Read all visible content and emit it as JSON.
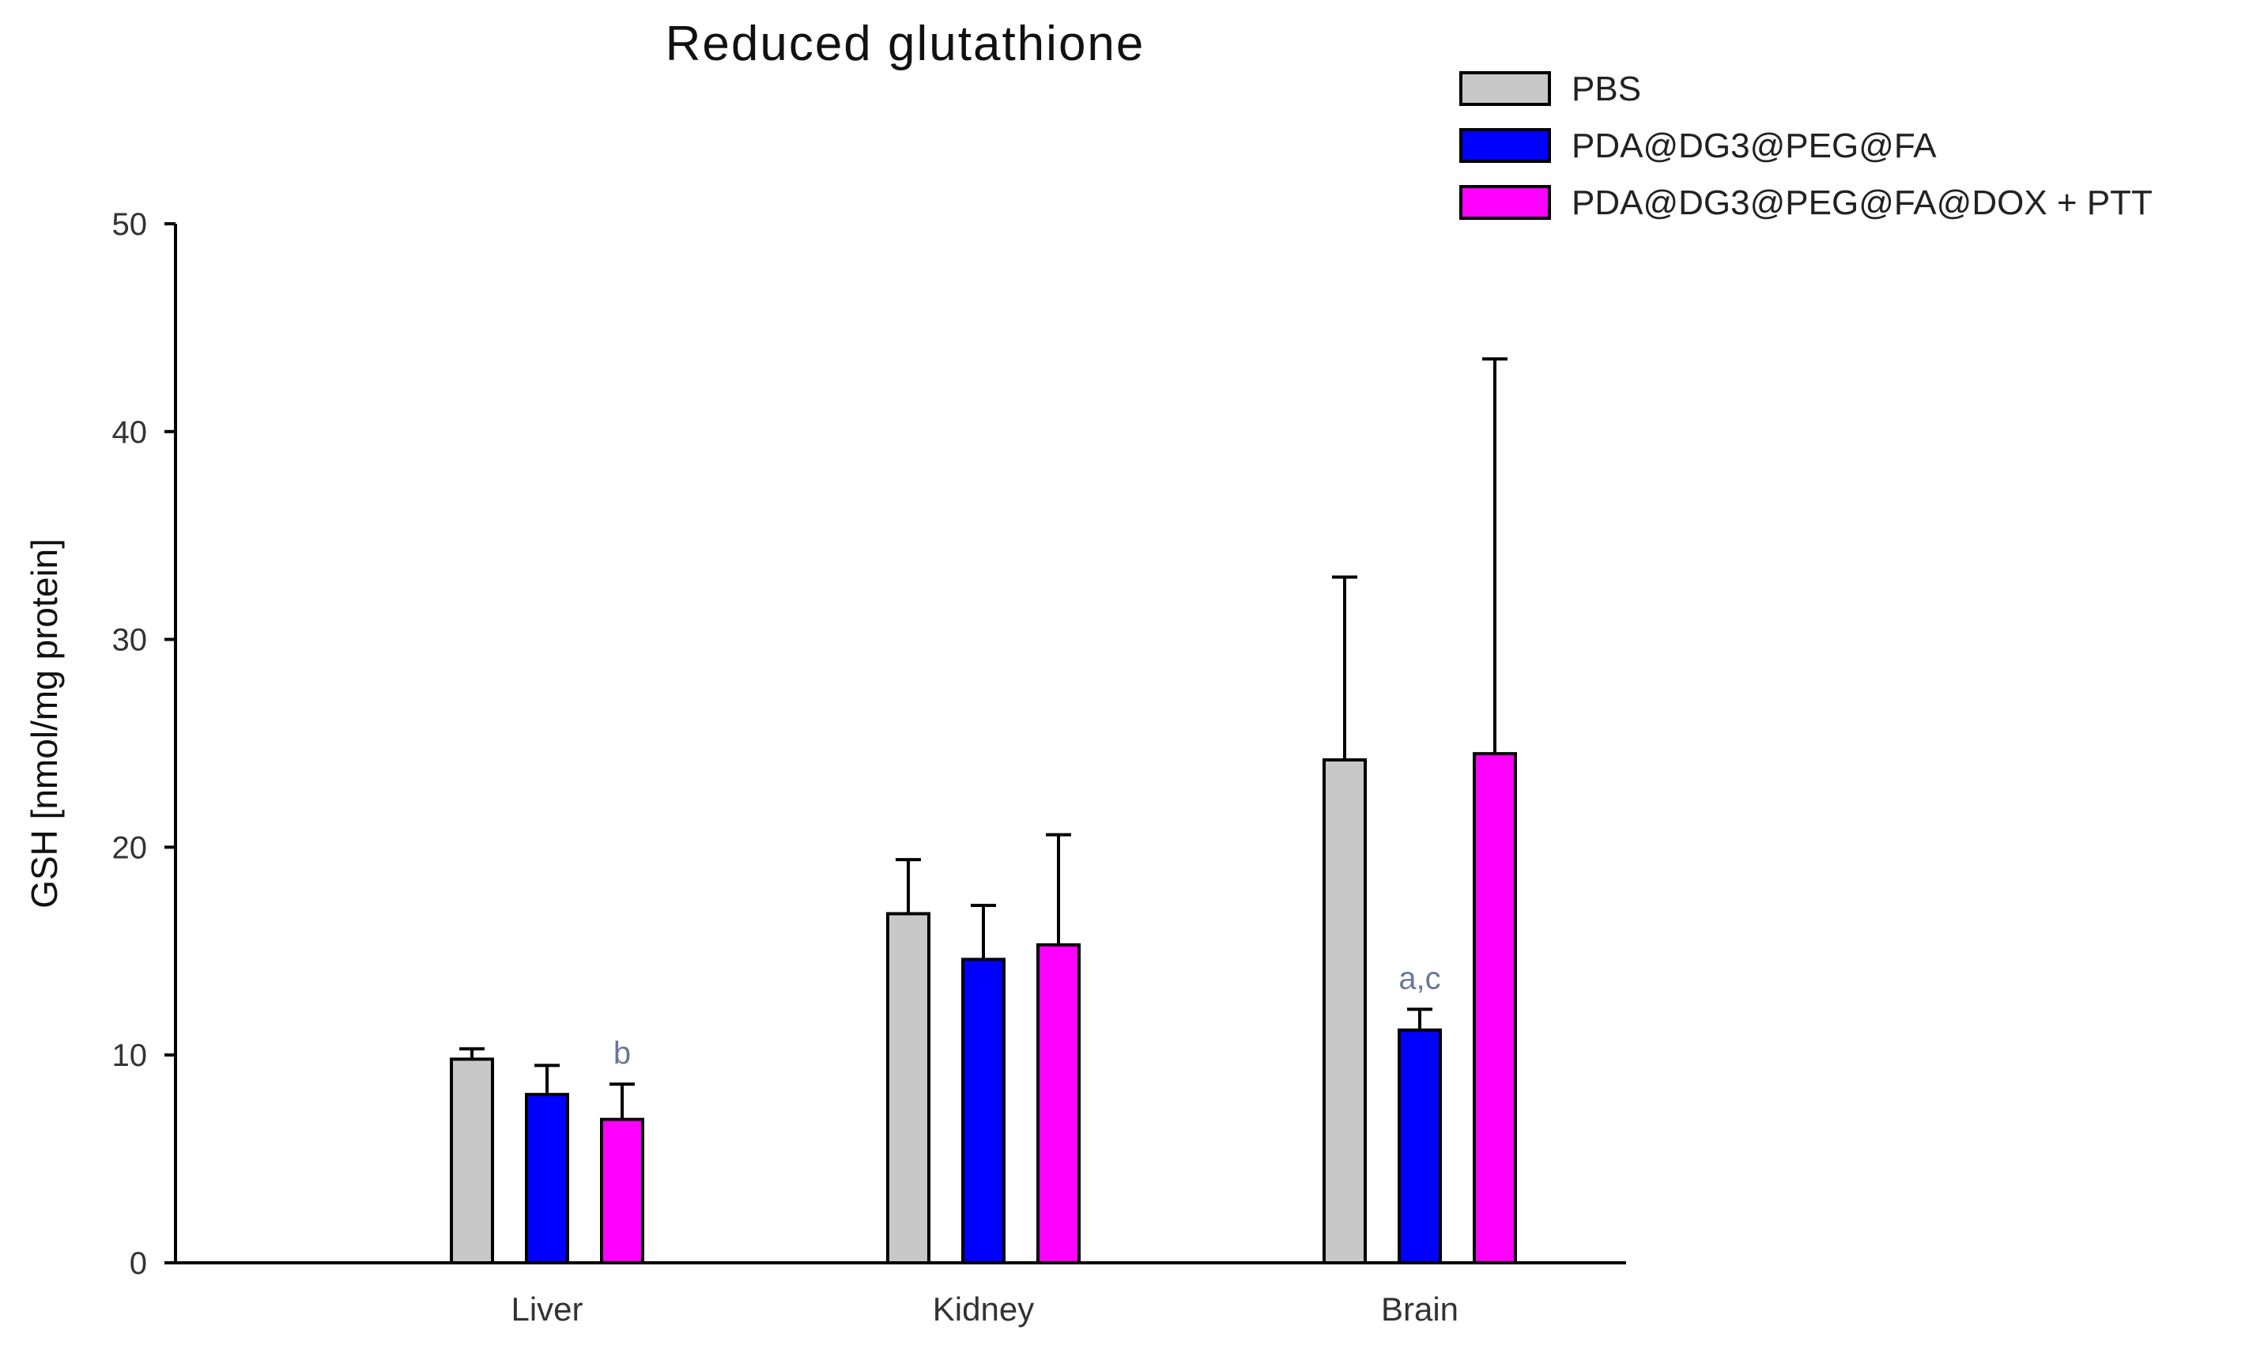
{
  "chart_data": {
    "type": "bar",
    "title": "Reduced glutathione",
    "xlabel": "",
    "ylabel": "GSH [nmol/mg protein]",
    "ylim": [
      0,
      50
    ],
    "yticks": [
      0,
      10,
      20,
      30,
      40,
      50
    ],
    "categories": [
      "Liver",
      "Kidney",
      "Brain"
    ],
    "grid": false,
    "legend_position": "top-right",
    "series": [
      {
        "name": "PBS",
        "color": "#c8c8c8",
        "values": [
          9.8,
          16.8,
          24.2
        ],
        "errors": [
          0.5,
          2.6,
          8.8
        ]
      },
      {
        "name": "PDA@DG3@PEG@FA",
        "color": "#0000ff",
        "values": [
          8.1,
          14.6,
          11.2
        ],
        "errors": [
          1.4,
          2.6,
          1.0
        ]
      },
      {
        "name": "PDA@DG3@PEG@FA@DOX + PTT",
        "color": "#ff00ff",
        "values": [
          6.9,
          15.3,
          24.5
        ],
        "errors": [
          1.7,
          5.3,
          19.0
        ]
      }
    ],
    "annotations": [
      {
        "category": "Liver",
        "series": "PDA@DG3@PEG@FA@DOX + PTT",
        "text": "b"
      },
      {
        "category": "Brain",
        "series": "PDA@DG3@PEG@FA",
        "text": "a,c"
      }
    ]
  }
}
